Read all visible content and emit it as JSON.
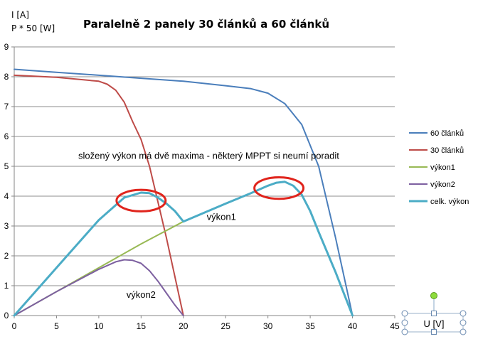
{
  "chart_data": {
    "type": "line",
    "title": "Paralelně 2 panely 30 článků a 60 článků",
    "ylabel_lines": [
      "I [A]",
      "P * 50 [W]"
    ],
    "xlabel": "U [V]",
    "xlim": [
      0,
      45
    ],
    "ylim": [
      0,
      9
    ],
    "x_ticks": [
      0,
      5,
      10,
      15,
      20,
      25,
      30,
      35,
      40,
      45
    ],
    "y_ticks": [
      0,
      1,
      2,
      3,
      4,
      5,
      6,
      7,
      8,
      9
    ],
    "grid": true,
    "legend_position": "right",
    "series": [
      {
        "name": "60 článků",
        "color": "#4a7ebb",
        "x": [
          0,
          5,
          10,
          15,
          20,
          25,
          28,
          30,
          32,
          34,
          36,
          38,
          40
        ],
        "y": [
          8.25,
          8.15,
          8.05,
          7.95,
          7.85,
          7.7,
          7.6,
          7.45,
          7.1,
          6.4,
          5.0,
          2.6,
          0
        ]
      },
      {
        "name": "30 článků",
        "color": "#be4b48",
        "x": [
          0,
          5,
          10,
          11,
          12,
          13,
          14,
          15,
          16,
          17,
          18,
          19,
          20
        ],
        "y": [
          8.05,
          7.98,
          7.85,
          7.75,
          7.55,
          7.15,
          6.5,
          5.9,
          5.0,
          3.8,
          2.6,
          1.3,
          0
        ]
      },
      {
        "name": "výkon1",
        "color": "#98b954",
        "x": [
          0,
          5,
          10,
          15,
          20
        ],
        "y": [
          0,
          0.8,
          1.6,
          2.4,
          3.15
        ]
      },
      {
        "name": "výkon2",
        "color": "#7d60a0",
        "x": [
          0,
          5,
          10,
          12,
          13,
          14,
          15,
          16,
          17,
          18,
          19,
          20
        ],
        "y": [
          0,
          0.8,
          1.55,
          1.8,
          1.87,
          1.85,
          1.75,
          1.5,
          1.15,
          0.75,
          0.35,
          0
        ]
      },
      {
        "name": "celk. výkon",
        "color": "#4bacc6",
        "x": [
          0,
          5,
          10,
          13,
          15,
          16,
          17,
          18,
          19,
          20,
          25,
          28,
          30,
          31,
          32,
          33,
          34,
          35,
          36,
          38,
          40
        ],
        "y": [
          0,
          1.6,
          3.2,
          3.95,
          4.12,
          4.1,
          3.95,
          3.75,
          3.5,
          3.15,
          3.75,
          4.1,
          4.35,
          4.45,
          4.48,
          4.35,
          4.05,
          3.5,
          2.8,
          1.45,
          0
        ]
      }
    ],
    "annotations": [
      {
        "text": "složený výkon má dvě maxima - některý MPPT si neumí poradit",
        "x": 23.0,
        "y": 5.25
      },
      {
        "text": "výkon1",
        "x": 24.5,
        "y": 3.2
      },
      {
        "text": "výkon2",
        "x": 15.0,
        "y": 0.6
      }
    ],
    "highlight_ellipses": [
      {
        "cx": 15.0,
        "cy": 3.85,
        "rx": 2.9,
        "ry": 0.36,
        "color": "#e0241c"
      },
      {
        "cx": 31.3,
        "cy": 4.27,
        "rx": 2.9,
        "ry": 0.36,
        "color": "#e0241c"
      }
    ]
  }
}
